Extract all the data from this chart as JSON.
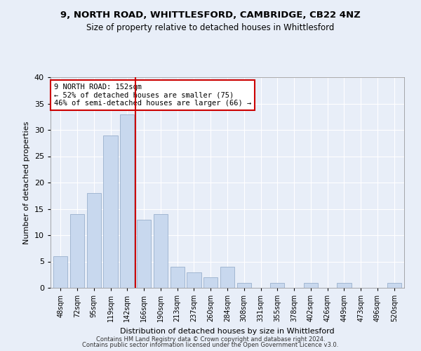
{
  "title1": "9, NORTH ROAD, WHITTLESFORD, CAMBRIDGE, CB22 4NZ",
  "title2": "Size of property relative to detached houses in Whittlesford",
  "xlabel": "Distribution of detached houses by size in Whittlesford",
  "ylabel": "Number of detached properties",
  "categories": [
    "48sqm",
    "72sqm",
    "95sqm",
    "119sqm",
    "142sqm",
    "166sqm",
    "190sqm",
    "213sqm",
    "237sqm",
    "260sqm",
    "284sqm",
    "308sqm",
    "331sqm",
    "355sqm",
    "378sqm",
    "402sqm",
    "426sqm",
    "449sqm",
    "473sqm",
    "496sqm",
    "520sqm"
  ],
  "values": [
    6,
    14,
    18,
    29,
    33,
    13,
    14,
    4,
    3,
    2,
    4,
    1,
    0,
    1,
    0,
    1,
    0,
    1,
    0,
    0,
    1
  ],
  "bar_color": "#c8d8ee",
  "bar_edgecolor": "#9ab0cc",
  "redline_x": 4.5,
  "annotation_text": "9 NORTH ROAD: 152sqm\n← 52% of detached houses are smaller (75)\n46% of semi-detached houses are larger (66) →",
  "annotation_box_color": "white",
  "annotation_box_edgecolor": "#cc0000",
  "redline_color": "#cc0000",
  "ylim": [
    0,
    40
  ],
  "yticks": [
    0,
    5,
    10,
    15,
    20,
    25,
    30,
    35,
    40
  ],
  "footer1": "Contains HM Land Registry data © Crown copyright and database right 2024.",
  "footer2": "Contains public sector information licensed under the Open Government Licence v3.0.",
  "bg_color": "#e8eef8",
  "plot_bg_color": "#e8eef8",
  "grid_color": "#ffffff",
  "title1_fontsize": 9.5,
  "title2_fontsize": 8.5,
  "xlabel_fontsize": 8.0,
  "ylabel_fontsize": 8.0,
  "xtick_fontsize": 7.0,
  "ytick_fontsize": 8.0,
  "footer_fontsize": 6.0
}
